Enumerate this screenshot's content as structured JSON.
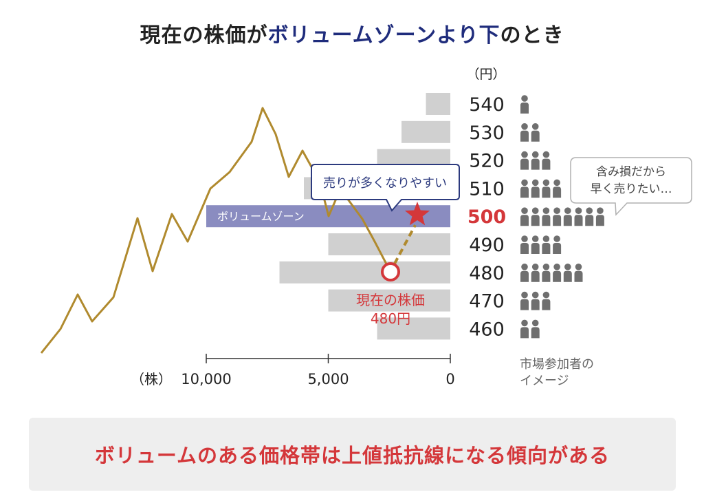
{
  "title": {
    "part1": "現在の株価が",
    "part2": "ボリュームゾーンより下",
    "part3": "のとき"
  },
  "colors": {
    "bar": "#d0d0d0",
    "volume_zone": "#8a8cc0",
    "price_line": "#b08a2e",
    "accent_red": "#d4373a",
    "person": "#6f6f6f",
    "callout_border": "#2c3a7e"
  },
  "chart_data": {
    "type": "bar",
    "orientation": "horizontal",
    "unit_price": "（円）",
    "unit_volume": "（株）",
    "categories": [
      "540",
      "530",
      "520",
      "510",
      "500",
      "490",
      "480",
      "470",
      "460"
    ],
    "values": [
      1000,
      2000,
      3000,
      6000,
      10000,
      5000,
      7000,
      5000,
      3000
    ],
    "highlight_category": "500",
    "xlim": [
      10000,
      0
    ],
    "x_ticks": [
      "10,000",
      "5,000",
      "0"
    ],
    "volume_zone_label": "ボリュームゾーン",
    "participants": [
      1,
      2,
      3,
      4,
      8,
      4,
      6,
      3,
      2
    ],
    "participants_label": "市場参加者の\nイメージ",
    "current_price_label": "現在の株価\n480円",
    "callout_text": "売りが多くなりやすい",
    "speech_text": "含み損だから\n早く売りたい…"
  },
  "footer": {
    "message": "ボリュームのある価格帯は上値抵抗線になる傾向がある"
  }
}
